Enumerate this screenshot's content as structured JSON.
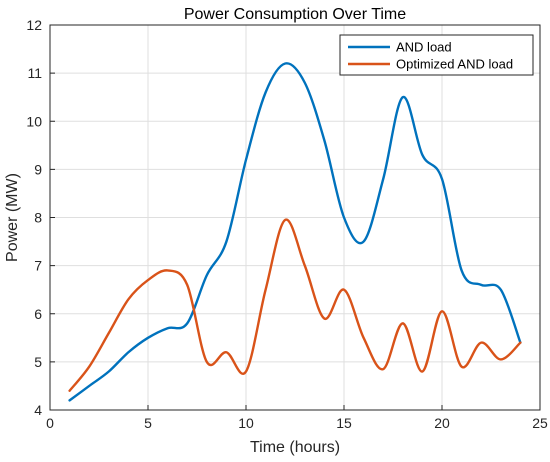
{
  "chart_data": {
    "type": "line",
    "title": "Power Consumption Over Time",
    "xlabel": "Time (hours)",
    "ylabel": "Power (MW)",
    "xlim": [
      0,
      25
    ],
    "ylim": [
      4,
      12
    ],
    "xticks": [
      0,
      5,
      10,
      15,
      20,
      25
    ],
    "yticks": [
      4,
      5,
      6,
      7,
      8,
      9,
      10,
      11,
      12
    ],
    "grid": true,
    "legend_position": "top-right",
    "x": [
      1,
      2,
      3,
      4,
      5,
      6,
      7,
      8,
      9,
      10,
      11,
      12,
      13,
      14,
      15,
      16,
      17,
      18,
      19,
      20,
      21,
      22,
      23,
      24
    ],
    "series": [
      {
        "name": "AND load",
        "color": "#0072BD",
        "values": [
          4.2,
          4.5,
          4.8,
          5.2,
          5.5,
          5.7,
          5.8,
          6.8,
          7.5,
          9.2,
          10.6,
          11.2,
          10.8,
          9.6,
          8.0,
          7.5,
          8.8,
          10.5,
          9.3,
          8.8,
          6.9,
          6.6,
          6.5,
          5.4
        ]
      },
      {
        "name": "Optimized AND load",
        "color": "#D95319",
        "values": [
          4.4,
          4.9,
          5.6,
          6.3,
          6.7,
          6.9,
          6.6,
          5.0,
          5.2,
          4.8,
          6.5,
          7.95,
          7.0,
          5.9,
          6.5,
          5.5,
          4.85,
          5.8,
          4.8,
          6.05,
          4.9,
          5.4,
          5.05,
          5.4
        ]
      }
    ]
  }
}
